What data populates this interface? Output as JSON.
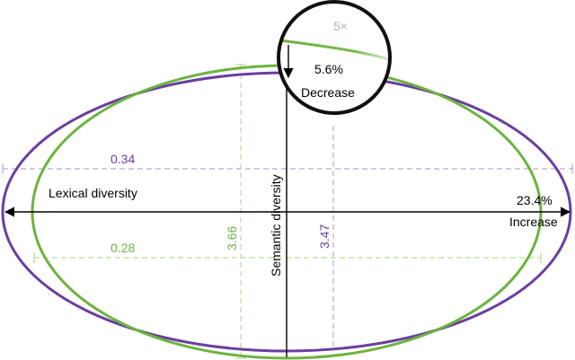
{
  "colors": {
    "purple": "#6a3fa0",
    "green": "#6db33f",
    "light_purple": "#b7a9d8",
    "light_green": "#b9dd9b",
    "black": "#000000",
    "gray": "#b3b3b3"
  },
  "labels": {
    "lexical_axis": "Lexical diversity",
    "semantic_axis": "Semantic diversity",
    "increase": "Increase",
    "increase_value": "23.4%",
    "decrease": "Decrease",
    "decrease_value": "5.6%",
    "magnification": "5×",
    "purple_lexical_width": "0.34",
    "green_lexical_width": "0.28",
    "green_semantic_height": "3.66",
    "purple_semantic_height": "3.47"
  }
}
